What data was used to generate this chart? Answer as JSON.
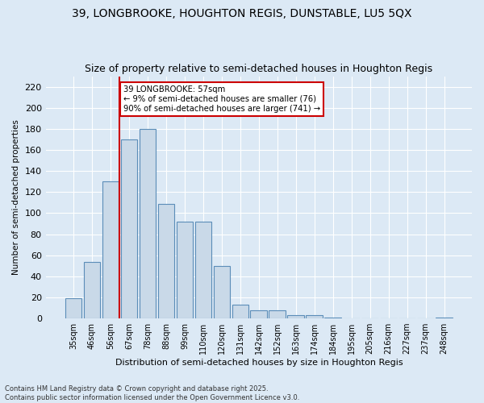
{
  "title1": "39, LONGBROOKE, HOUGHTON REGIS, DUNSTABLE, LU5 5QX",
  "title2": "Size of property relative to semi-detached houses in Houghton Regis",
  "xlabel": "Distribution of semi-detached houses by size in Houghton Regis",
  "ylabel": "Number of semi-detached properties",
  "categories": [
    "35sqm",
    "46sqm",
    "56sqm",
    "67sqm",
    "78sqm",
    "88sqm",
    "99sqm",
    "110sqm",
    "120sqm",
    "131sqm",
    "142sqm",
    "152sqm",
    "163sqm",
    "174sqm",
    "184sqm",
    "195sqm",
    "205sqm",
    "216sqm",
    "227sqm",
    "237sqm",
    "248sqm"
  ],
  "values": [
    19,
    54,
    130,
    170,
    180,
    109,
    92,
    92,
    50,
    13,
    8,
    8,
    3,
    3,
    1,
    0,
    0,
    0,
    0,
    0,
    1
  ],
  "bar_color": "#c9d9e8",
  "bar_edge_color": "#5b8db8",
  "vline_x": 1.5,
  "vline_color": "#cc0000",
  "annotation_title": "39 LONGBROOKE: 57sqm",
  "annotation_line1": "← 9% of semi-detached houses are smaller (76)",
  "annotation_line2": "90% of semi-detached houses are larger (741) →",
  "annotation_box_color": "#cc0000",
  "ylim": [
    0,
    230
  ],
  "yticks": [
    0,
    20,
    40,
    60,
    80,
    100,
    120,
    140,
    160,
    180,
    200,
    220
  ],
  "footer1": "Contains HM Land Registry data © Crown copyright and database right 2025.",
  "footer2": "Contains public sector information licensed under the Open Government Licence v3.0.",
  "bg_color": "#dce9f5",
  "plot_bg_color": "#dce9f5",
  "grid_color": "#ffffff",
  "title_fontsize": 10,
  "subtitle_fontsize": 9
}
